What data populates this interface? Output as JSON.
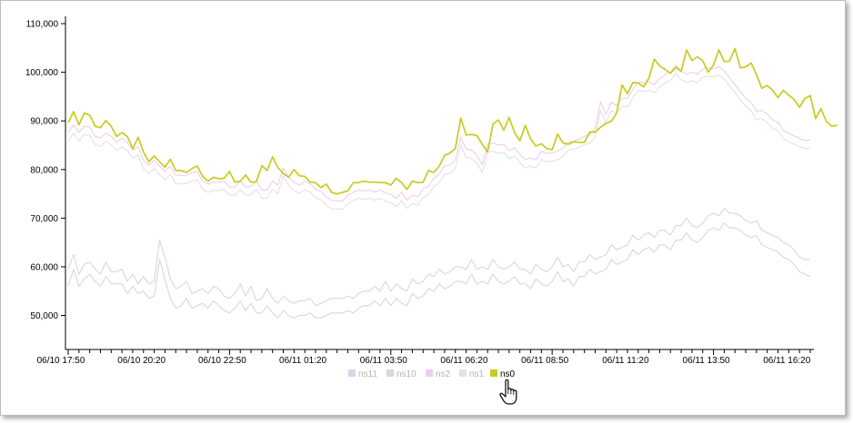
{
  "chart_data": {
    "type": "line",
    "title": "",
    "xlabel": "",
    "ylabel": "",
    "ylim": [
      43000,
      111500
    ],
    "y_ticks": [
      50000,
      60000,
      70000,
      80000,
      90000,
      100000,
      110000
    ],
    "y_tick_labels": [
      "50,000",
      "60,000",
      "70,000",
      "80,000",
      "90,000",
      "100,000",
      "110,000"
    ],
    "x_tick_labels": [
      "06/10 17:50",
      "06/10 20:20",
      "06/10 22:50",
      "06/11 01:20",
      "06/11 03:50",
      "06/11 06:20",
      "06/11 08:50",
      "06/11 11:20",
      "06/11 13:50",
      "06/11 16:20"
    ],
    "x_label_index": [
      0,
      15,
      30,
      45,
      60,
      75,
      90,
      105,
      120,
      135
    ],
    "grid": false,
    "legend_placement": "bottom-center",
    "series": [
      {
        "name": "ns11",
        "color": "#d9d3ea",
        "active": false,
        "values": [
          59500,
          62500,
          58500,
          60500,
          61000,
          59500,
          58500,
          61000,
          59000,
          59000,
          59500,
          57000,
          58500,
          56500,
          58000,
          56500,
          57000,
          65500,
          62000,
          57500,
          55500,
          56000,
          57000,
          54500,
          55000,
          55500,
          54500,
          56000,
          55500,
          54000,
          53500,
          54500,
          56500,
          54000,
          56000,
          53000,
          53500,
          55500,
          53500,
          52500,
          54000,
          53000,
          52500,
          53000,
          53000,
          53500,
          52000,
          52500,
          53000,
          53500,
          53500,
          53500,
          54000,
          53500,
          54500,
          55000,
          55000,
          56000,
          55000,
          57000,
          55000,
          56500,
          55500,
          55000,
          57500,
          56500,
          57000,
          58500,
          58000,
          59500,
          58500,
          59000,
          60000,
          60000,
          59500,
          61500,
          59500,
          60000,
          59500,
          61500,
          60000,
          59500,
          60000,
          61000,
          59500,
          59500,
          58500,
          60500,
          59500,
          59000,
          60000,
          62000,
          60000,
          60500,
          59000,
          61000,
          61000,
          62500,
          61500,
          62000,
          62500,
          64500,
          63500,
          64000,
          64500,
          66500,
          65500,
          66500,
          67000,
          66000,
          67500,
          67500,
          66500,
          68500,
          68500,
          70000,
          68500,
          68000,
          69000,
          70500,
          71000,
          70500,
          72000,
          71000,
          71000,
          70500,
          69500,
          69000,
          69500,
          67500,
          67000,
          66500,
          66000,
          65000,
          64500,
          63500,
          62000,
          61500,
          61500
        ]
      },
      {
        "name": "ns10",
        "color": "#dcd6d4",
        "active": false,
        "values": [
          56000,
          59500,
          56000,
          57500,
          58500,
          57000,
          56000,
          58000,
          56500,
          56500,
          56500,
          54500,
          56000,
          54500,
          55000,
          53500,
          54000,
          61500,
          57500,
          53500,
          51500,
          52000,
          53500,
          51500,
          52000,
          52500,
          51500,
          53000,
          52000,
          51000,
          50500,
          51500,
          53000,
          51000,
          52500,
          50500,
          50500,
          52000,
          50500,
          49500,
          51000,
          50000,
          49500,
          50000,
          50000,
          50500,
          49500,
          49500,
          50000,
          50500,
          50500,
          50500,
          51000,
          50500,
          51500,
          52000,
          52000,
          53000,
          52000,
          53500,
          52000,
          53500,
          52500,
          52000,
          54500,
          53500,
          54000,
          55500,
          55000,
          56500,
          55500,
          56000,
          57000,
          57000,
          56500,
          58500,
          56500,
          57000,
          56500,
          58500,
          57000,
          56500,
          57000,
          58000,
          56500,
          56500,
          55500,
          57500,
          56500,
          56000,
          57000,
          59000,
          57000,
          57500,
          56000,
          58000,
          58000,
          59500,
          58500,
          59000,
          59500,
          61500,
          60500,
          61000,
          61500,
          63500,
          62500,
          63500,
          64000,
          63000,
          64500,
          64500,
          63500,
          65500,
          65500,
          67000,
          65500,
          65000,
          66000,
          67500,
          68000,
          67500,
          69000,
          68000,
          68000,
          67500,
          66500,
          66000,
          66500,
          64500,
          64000,
          63500,
          63000,
          62000,
          61500,
          60500,
          59000,
          58500,
          58000
        ]
      },
      {
        "name": "ns2",
        "color": "#f2ccea",
        "active": false,
        "values": [
          87600,
          89200,
          87600,
          88900,
          88700,
          86800,
          86500,
          87500,
          86800,
          85600,
          86400,
          85600,
          84000,
          84700,
          81900,
          80900,
          81900,
          80700,
          79600,
          80700,
          78800,
          78800,
          78800,
          79400,
          79600,
          77600,
          77000,
          77400,
          77400,
          77600,
          76400,
          76400,
          77600,
          76400,
          76500,
          77600,
          75800,
          75800,
          77600,
          76800,
          80400,
          78400,
          77400,
          76800,
          77600,
          77000,
          75900,
          75500,
          74400,
          73600,
          73600,
          73500,
          74700,
          75300,
          75800,
          75600,
          75800,
          75400,
          75800,
          75200,
          74900,
          74000,
          75300,
          73700,
          74700,
          74400,
          76000,
          76600,
          78200,
          79000,
          80700,
          80900,
          82000,
          86700,
          84200,
          84000,
          83000,
          81000,
          85200,
          85500,
          85000,
          85200,
          83900,
          84500,
          83100,
          82000,
          82400,
          82000,
          83800,
          83300,
          83400,
          83800,
          84400,
          85700,
          85800,
          86300,
          86800,
          87200,
          88400,
          93900,
          91400,
          93800,
          93200,
          94700,
          94600,
          96500,
          98000,
          97800,
          98000,
          97500,
          98700,
          99500,
          100000,
          101500,
          100200,
          99600,
          100000,
          99600,
          100700,
          100900,
          100700,
          101100,
          100300,
          98900,
          97500,
          96000,
          94700,
          93800,
          91900,
          92200,
          91400,
          90200,
          89700,
          88100,
          87400,
          86900,
          86400,
          86000,
          86000
        ]
      },
      {
        "name": "ns1",
        "color": "#e2e2e2",
        "active": false,
        "values": [
          85900,
          87500,
          85900,
          87200,
          87000,
          85100,
          84800,
          85800,
          85100,
          83900,
          84700,
          83900,
          82300,
          83000,
          80200,
          79200,
          80200,
          79000,
          77900,
          79000,
          77100,
          77100,
          77100,
          77700,
          77900,
          75900,
          75300,
          75700,
          75700,
          75900,
          74700,
          74700,
          75900,
          74700,
          74800,
          75900,
          74100,
          74100,
          75900,
          75100,
          78700,
          76700,
          75700,
          75100,
          75900,
          75300,
          74200,
          73800,
          72700,
          71900,
          71900,
          71800,
          73000,
          73600,
          74100,
          73900,
          74100,
          73700,
          74100,
          73500,
          73200,
          72300,
          73600,
          72000,
          73000,
          72700,
          74300,
          74900,
          76500,
          77300,
          79000,
          79200,
          80300,
          85000,
          82500,
          82300,
          81300,
          79300,
          83500,
          83800,
          83300,
          83500,
          82200,
          82800,
          81400,
          80300,
          80700,
          80300,
          82100,
          81600,
          81700,
          82100,
          82700,
          84000,
          84100,
          84600,
          85100,
          85500,
          86700,
          92200,
          89700,
          92100,
          91500,
          93000,
          92900,
          94800,
          96300,
          96100,
          96300,
          95800,
          97000,
          97800,
          98300,
          99800,
          98500,
          97900,
          98300,
          97900,
          99000,
          99200,
          99000,
          99400,
          98600,
          97200,
          95800,
          94300,
          93000,
          92100,
          90200,
          90500,
          89700,
          88500,
          88000,
          86400,
          85700,
          85200,
          84700,
          84300,
          84300
        ]
      },
      {
        "name": "ns0",
        "color": "#c7cc1d",
        "active": true,
        "values": [
          89600,
          91900,
          89200,
          91600,
          91200,
          88900,
          88600,
          90100,
          88900,
          86800,
          87600,
          86800,
          84300,
          86600,
          83600,
          81600,
          82800,
          81600,
          80500,
          82100,
          79800,
          79800,
          79400,
          80200,
          80700,
          78600,
          77600,
          78400,
          78100,
          78200,
          79600,
          77400,
          77600,
          78900,
          77400,
          77500,
          80800,
          79800,
          82600,
          80400,
          79200,
          78400,
          80000,
          78700,
          78600,
          77400,
          77300,
          76300,
          77000,
          75300,
          75000,
          75300,
          75600,
          77300,
          77300,
          77600,
          77400,
          77400,
          77300,
          77300,
          76800,
          78200,
          77300,
          75900,
          77600,
          77300,
          77400,
          79800,
          79400,
          80700,
          82900,
          83400,
          84300,
          90600,
          87100,
          87200,
          87000,
          85200,
          83600,
          89300,
          90200,
          88100,
          90700,
          87600,
          85900,
          89100,
          86300,
          84800,
          85300,
          84300,
          84100,
          87300,
          85500,
          85200,
          85700,
          85600,
          85600,
          87700,
          87700,
          88700,
          89500,
          89900,
          91600,
          97400,
          95600,
          97900,
          97800,
          97000,
          98800,
          102700,
          101300,
          100600,
          99800,
          101000,
          100200,
          104600,
          102400,
          103200,
          102400,
          100000,
          101500,
          104600,
          102200,
          102300,
          104900,
          100900,
          101100,
          101900,
          99500,
          96700,
          97300,
          96300,
          94800,
          96300,
          95300,
          94400,
          92800,
          94600,
          95200,
          90500,
          92500,
          89900,
          88900,
          89100
        ]
      }
    ]
  },
  "legend": [
    {
      "label": "ns11",
      "color": "#d9d3ea"
    },
    {
      "label": "ns10",
      "color": "#dcd6d4"
    },
    {
      "label": "ns2",
      "color": "#f2ccea"
    },
    {
      "label": "ns1",
      "color": "#e2e2e2"
    },
    {
      "label": "ns0",
      "color": "#c7cc1d"
    }
  ],
  "cursor_icon": "hand-pointer-icon"
}
